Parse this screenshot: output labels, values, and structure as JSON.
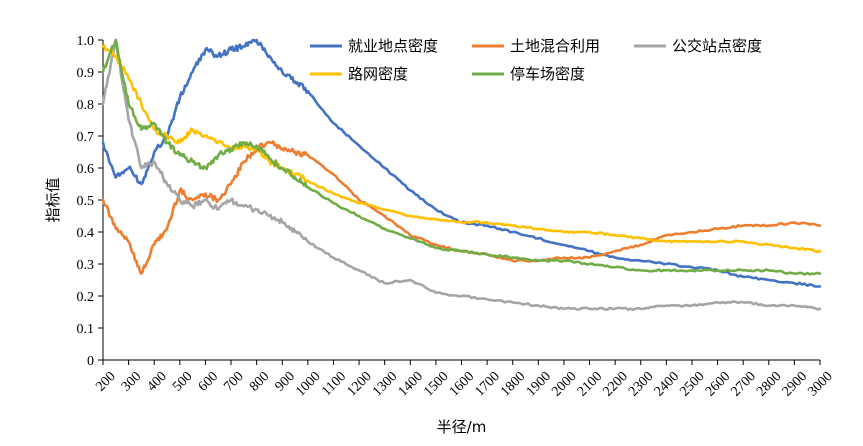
{
  "chart_data": {
    "type": "line",
    "xlabel": "半径/m",
    "ylabel": "指标值",
    "xlim": [
      200,
      3000
    ],
    "ylim": [
      0,
      1.0
    ],
    "x_ticks": [
      "200",
      "300",
      "400",
      "500",
      "600",
      "700",
      "800",
      "900",
      "1000",
      "1100",
      "1200",
      "1300",
      "1400",
      "1500",
      "1600",
      "1700",
      "1800",
      "1900",
      "2000",
      "2100",
      "2200",
      "2300",
      "2400",
      "2500",
      "2600",
      "2700",
      "2800",
      "2900",
      "3000"
    ],
    "y_ticks": [
      "0",
      "0.1",
      "0.2",
      "0.3",
      "0.4",
      "0.5",
      "0.6",
      "0.7",
      "0.8",
      "0.9",
      "1.0"
    ],
    "grid": false,
    "legend_position": "top-right",
    "x": [
      200,
      250,
      300,
      350,
      400,
      450,
      500,
      550,
      600,
      650,
      700,
      750,
      800,
      850,
      900,
      950,
      1000,
      1100,
      1200,
      1300,
      1400,
      1500,
      1600,
      1700,
      1800,
      1900,
      2000,
      2100,
      2200,
      2300,
      2400,
      2500,
      2600,
      2700,
      2800,
      2900,
      3000
    ],
    "series": [
      {
        "name": "就业地点密度",
        "color": "#4472C4",
        "values": [
          0.68,
          0.57,
          0.6,
          0.55,
          0.65,
          0.7,
          0.82,
          0.9,
          0.97,
          0.95,
          0.97,
          0.98,
          1.0,
          0.95,
          0.9,
          0.87,
          0.84,
          0.74,
          0.67,
          0.6,
          0.53,
          0.47,
          0.43,
          0.42,
          0.4,
          0.38,
          0.36,
          0.34,
          0.32,
          0.31,
          0.3,
          0.29,
          0.28,
          0.26,
          0.25,
          0.24,
          0.23
        ]
      },
      {
        "name": "土地混合利用",
        "color": "#ED7D31",
        "values": [
          0.5,
          0.41,
          0.37,
          0.27,
          0.36,
          0.41,
          0.53,
          0.5,
          0.52,
          0.5,
          0.55,
          0.62,
          0.66,
          0.68,
          0.66,
          0.65,
          0.64,
          0.58,
          0.5,
          0.45,
          0.39,
          0.36,
          0.34,
          0.33,
          0.31,
          0.31,
          0.32,
          0.32,
          0.34,
          0.36,
          0.39,
          0.4,
          0.41,
          0.42,
          0.42,
          0.43,
          0.42
        ]
      },
      {
        "name": "公交站点密度",
        "color": "#A5A5A5",
        "values": [
          0.8,
          1.0,
          0.75,
          0.6,
          0.62,
          0.55,
          0.5,
          0.48,
          0.5,
          0.47,
          0.5,
          0.48,
          0.47,
          0.45,
          0.43,
          0.4,
          0.37,
          0.32,
          0.28,
          0.24,
          0.25,
          0.21,
          0.2,
          0.19,
          0.18,
          0.17,
          0.16,
          0.16,
          0.16,
          0.16,
          0.17,
          0.17,
          0.18,
          0.18,
          0.17,
          0.17,
          0.16
        ]
      },
      {
        "name": "路网密度",
        "color": "#FFC000",
        "values": [
          0.98,
          0.95,
          0.88,
          0.8,
          0.72,
          0.7,
          0.68,
          0.72,
          0.7,
          0.68,
          0.66,
          0.67,
          0.66,
          0.62,
          0.6,
          0.58,
          0.56,
          0.52,
          0.49,
          0.47,
          0.45,
          0.44,
          0.43,
          0.43,
          0.42,
          0.41,
          0.4,
          0.4,
          0.39,
          0.38,
          0.37,
          0.37,
          0.37,
          0.37,
          0.36,
          0.35,
          0.34
        ]
      },
      {
        "name": "停车场密度",
        "color": "#70AD47",
        "values": [
          0.9,
          1.0,
          0.8,
          0.72,
          0.74,
          0.68,
          0.64,
          0.62,
          0.6,
          0.64,
          0.66,
          0.68,
          0.67,
          0.63,
          0.6,
          0.57,
          0.54,
          0.49,
          0.45,
          0.41,
          0.38,
          0.35,
          0.34,
          0.33,
          0.32,
          0.31,
          0.31,
          0.3,
          0.29,
          0.28,
          0.28,
          0.28,
          0.28,
          0.28,
          0.28,
          0.27,
          0.27
        ]
      }
    ]
  }
}
